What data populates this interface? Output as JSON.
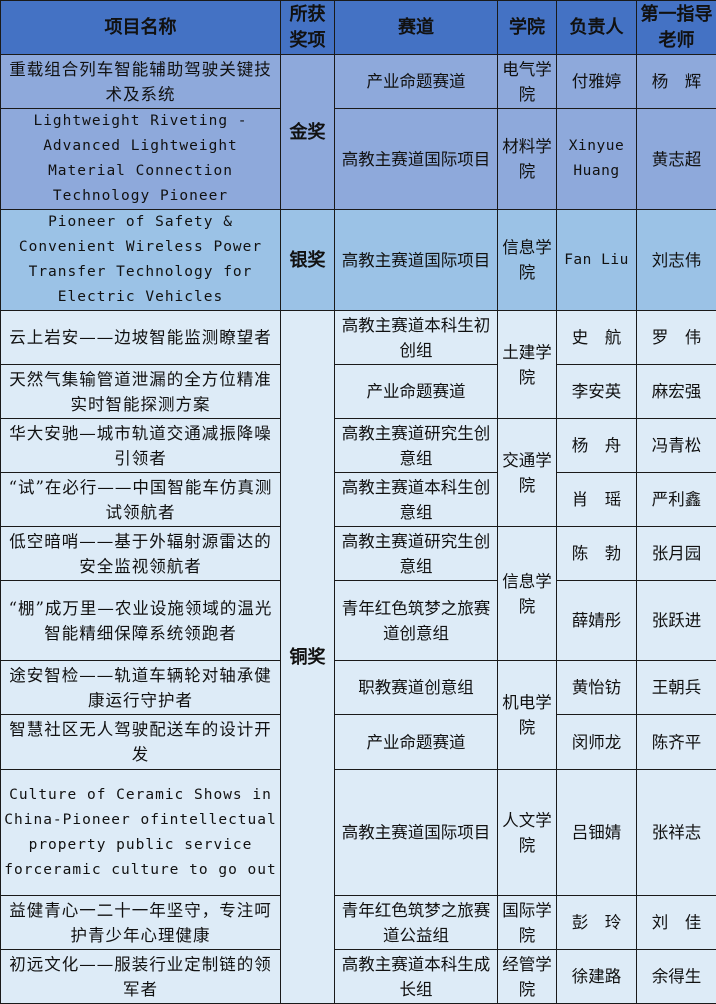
{
  "headers": [
    "项目名称",
    "所获奖项",
    "赛道",
    "学院",
    "负责人",
    "第一指导老师"
  ],
  "colors": {
    "header": "#4472C4",
    "gold": "#8EA9DB",
    "silver": "#9BC2E6",
    "bronze": "#DDEBF7"
  },
  "rows": [
    {
      "tier": "gold",
      "project": "重载组合列车智能辅助驾驶关键技术及系统",
      "award": "金奖",
      "track": "产业命题赛道",
      "college": "电气学院",
      "leader": "付雅婷",
      "advisor": "杨　辉"
    },
    {
      "tier": "gold",
      "project": "Lightweight Riveting - Advanced Lightweight Material Connection Technology Pioneer",
      "track": "高教主赛道国际项目",
      "college": "材料学院",
      "leader": "Xinyue Huang",
      "advisor": "黄志超"
    },
    {
      "tier": "silver",
      "project": "Pioneer of Safety & Convenient Wireless Power Transfer Technology for Electric Vehicles",
      "award": "银奖",
      "track": "高教主赛道国际项目",
      "college": "信息学院",
      "leader": "Fan Liu",
      "advisor": "刘志伟"
    },
    {
      "tier": "bronze",
      "project": "云上岩安——边坡智能监测瞭望者",
      "award": "铜奖",
      "track": "高教主赛道本科生初创组",
      "college": "土建学院",
      "leader": "史　航",
      "advisor": "罗　伟"
    },
    {
      "tier": "bronze",
      "project": "天然气集输管道泄漏的全方位精准实时智能探测方案",
      "track": "产业命题赛道",
      "leader": "李安英",
      "advisor": "麻宏强"
    },
    {
      "tier": "bronze",
      "project": "华大安驰—城市轨道交通减振降噪引领者",
      "track": "高教主赛道研究生创意组",
      "college": "交通学院",
      "leader": "杨　舟",
      "advisor": "冯青松"
    },
    {
      "tier": "bronze",
      "project": "“试”在必行——中国智能车仿真测试领航者",
      "track": "高教主赛道本科生创意组",
      "leader": "肖　瑶",
      "advisor": "严利鑫"
    },
    {
      "tier": "bronze",
      "project": "低空暗哨——基于外辐射源雷达的安全监视领航者",
      "track": "高教主赛道研究生创意组",
      "college": "信息学院",
      "leader": "陈　勃",
      "advisor": "张月园"
    },
    {
      "tier": "bronze",
      "project": "“棚”成万里—农业设施领域的温光智能精细保障系统领跑者",
      "track": "青年红色筑梦之旅赛道创意组",
      "leader": "薛婧彤",
      "advisor": "张跃进"
    },
    {
      "tier": "bronze",
      "project": "途安智检——轨道车辆轮对轴承健康运行守护者",
      "track": "职教赛道创意组",
      "college": "机电学院",
      "leader": "黄怡钫",
      "advisor": "王朝兵"
    },
    {
      "tier": "bronze",
      "project": "智慧社区无人驾驶配送车的设计开发",
      "track": "产业命题赛道",
      "leader": "闵师龙",
      "advisor": "陈齐平"
    },
    {
      "tier": "bronze",
      "project": "Culture of Ceramic Shows in China-Pioneer ofintellectual property public service forceramic culture to go out",
      "track": "高教主赛道国际项目",
      "college": "人文学院",
      "leader": "吕钿婧",
      "advisor": "张祥志"
    },
    {
      "tier": "bronze",
      "project": "益健青心一二十一年坚守，专注呵护青少年心理健康",
      "track": "青年红色筑梦之旅赛道公益组",
      "college": "国际学院",
      "leader": "彭　玲",
      "advisor": "刘　佳"
    },
    {
      "tier": "bronze",
      "project": "初远文化——服装行业定制链的领军者",
      "track": "高教主赛道本科生成长组",
      "college": "经管学院",
      "leader": "徐建路",
      "advisor": "余得生"
    }
  ]
}
